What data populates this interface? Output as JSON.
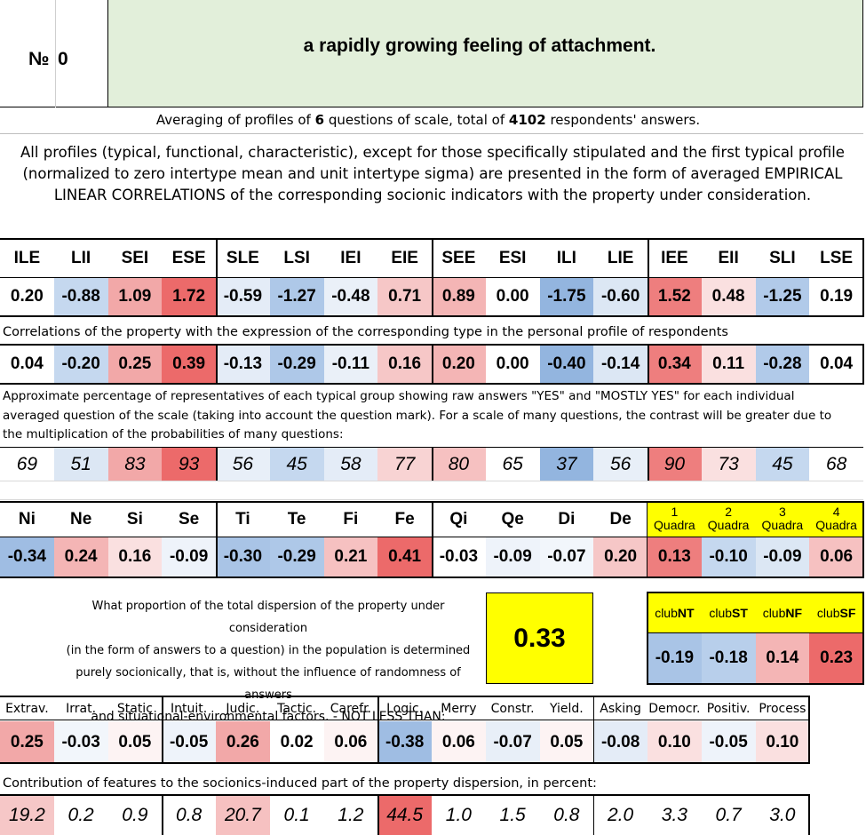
{
  "header": {
    "number_label": "№",
    "number_value": "0",
    "title": "a rapidly growing feeling of attachment."
  },
  "summary": {
    "prefix": "Averaging of profiles of ",
    "questions": "6",
    "middle": " questions of scale, total of ",
    "respondents": "4102",
    "suffix": " respondents' answers."
  },
  "description": "All profiles (typical, functional, characteristic), except for those specifically stipulated and the first typical profile (normalized to zero intertype mean and unit intertype sigma) are presented in the form of averaged EMPIRICAL LINEAR CORRELATIONS of the corresponding socionic indicators with the property under consideration.",
  "types": {
    "headers": [
      "ILE",
      "LII",
      "SEI",
      "ESE",
      "SLE",
      "LSI",
      "IEI",
      "EIE",
      "SEE",
      "ESI",
      "ILI",
      "LIE",
      "IEE",
      "EII",
      "SLI",
      "LSE"
    ],
    "profile": [
      "0.20",
      "-0.88",
      "1.09",
      "1.72",
      "-0.59",
      "-1.27",
      "-0.48",
      "0.71",
      "0.89",
      "0.00",
      "-1.75",
      "-0.60",
      "1.52",
      "0.48",
      "-1.25",
      "0.19"
    ],
    "profile_colors": [
      "#ffffff",
      "#c5d8ef",
      "#f2a8a8",
      "#ec6a6a",
      "#e4ecf7",
      "#aec8e8",
      "#eaf0f8",
      "#f6c7c7",
      "#f4b5b5",
      "#ffffff",
      "#93b5df",
      "#dce7f4",
      "#ee7e7e",
      "#fae0e0",
      "#b1cae9",
      "#ffffff"
    ],
    "correlation_note": "Correlations of the property with the expression of the corresponding type in the personal profile of respondents",
    "correlations": [
      "0.04",
      "-0.20",
      "0.25",
      "0.39",
      "-0.13",
      "-0.29",
      "-0.11",
      "0.16",
      "0.20",
      "0.00",
      "-0.40",
      "-0.14",
      "0.34",
      "0.11",
      "-0.28",
      "0.04"
    ],
    "correlation_colors": [
      "#ffffff",
      "#c5d8ef",
      "#f2a8a8",
      "#ec6a6a",
      "#e4ecf7",
      "#aec8e8",
      "#eaf0f8",
      "#f6c7c7",
      "#f4b5b5",
      "#ffffff",
      "#93b5df",
      "#dce7f4",
      "#ee7e7e",
      "#fae0e0",
      "#b1cae9",
      "#ffffff"
    ],
    "percentage_note": "Approximate percentage of representatives of each typical group showing raw answers \"YES\" and \"MOSTLY YES\" for each individual averaged question of the scale (taking into account the question mark). For a scale of many questions, the contrast will be greater due to the multiplication of the probabilities of many questions:",
    "percentages": [
      "69",
      "51",
      "83",
      "93",
      "56",
      "45",
      "58",
      "77",
      "80",
      "65",
      "37",
      "56",
      "90",
      "73",
      "45",
      "68"
    ],
    "percentage_colors": [
      "#ffffff",
      "#dce7f4",
      "#f2a8a8",
      "#ec6a6a",
      "#e8eff8",
      "#c5d8ef",
      "#e4ecf7",
      "#f8d3d3",
      "#f6c1c1",
      "#ffffff",
      "#93b5df",
      "#e8eff8",
      "#ee7e7e",
      "#fae0e0",
      "#c5d8ef",
      "#ffffff"
    ]
  },
  "functions": {
    "headers": [
      "Ni",
      "Ne",
      "Si",
      "Se",
      "Ti",
      "Te",
      "Fi",
      "Fe",
      "Qi",
      "Qe",
      "Di",
      "De"
    ],
    "values": [
      "-0.34",
      "0.24",
      "0.16",
      "-0.09",
      "-0.30",
      "-0.29",
      "0.21",
      "0.41",
      "-0.03",
      "-0.09",
      "-0.07",
      "0.20"
    ],
    "colors": [
      "#9fbde3",
      "#f4b5b5",
      "#fae0e0",
      "#eef3fa",
      "#a9c4e6",
      "#aec8e8",
      "#f6c1c1",
      "#ec6a6a",
      "#ffffff",
      "#eef3fa",
      "#f2f6fb",
      "#f6c7c7"
    ],
    "quadras": [
      {
        "num": "1",
        "label": "Quadra",
        "value": "0.13",
        "color": "#ee7e7e"
      },
      {
        "num": "2",
        "label": "Quadra",
        "value": "-0.10",
        "color": "#c5d8ef"
      },
      {
        "num": "3",
        "label": "Quadra",
        "value": "-0.09",
        "color": "#dce7f4"
      },
      {
        "num": "4",
        "label": "Quadra",
        "value": "0.06",
        "color": "#f6c1c1"
      }
    ],
    "quadra_header_color": "#ffff00"
  },
  "dispersion": {
    "lines": [
      "What proportion of the total dispersion of the property under consideration",
      "(in the form of answers to a question) in the population is determined",
      "purely socionically, that is, without the influence of randomness of answers",
      "and situational-environmental factors. - NOT LESS THAN:"
    ],
    "value": "0.33",
    "value_color": "#ffff00"
  },
  "clubs": {
    "items": [
      {
        "prefix": "club",
        "suffix": "NT",
        "value": "-0.19",
        "color": "#a9c4e6"
      },
      {
        "prefix": "club",
        "suffix": "ST",
        "value": "-0.18",
        "color": "#b8cfeb"
      },
      {
        "prefix": "club",
        "suffix": "NF",
        "value": "0.14",
        "color": "#f4b5b5"
      },
      {
        "prefix": "club",
        "suffix": "SF",
        "value": "0.23",
        "color": "#ec6a6a"
      }
    ],
    "header_color": "#ffff00"
  },
  "traits": {
    "headers": [
      "Extrav.",
      "Irrat.",
      "Static",
      "Intuit.",
      "Judic.",
      "Tactic.",
      "Carefr.",
      "Logic.",
      "Merry",
      "Constr.",
      "Yield.",
      "Asking",
      "Democr.",
      "Positiv.",
      "Process"
    ],
    "values": [
      "0.25",
      "-0.03",
      "0.05",
      "-0.05",
      "0.26",
      "0.02",
      "0.06",
      "-0.38",
      "0.06",
      "-0.07",
      "0.05",
      "-0.08",
      "0.10",
      "-0.05",
      "0.10"
    ],
    "colors": [
      "#f2a8a8",
      "#f2f6fb",
      "#fdf3f3",
      "#eef3fa",
      "#f2a8a8",
      "#ffffff",
      "#fdf3f3",
      "#9fbde3",
      "#fdf3f3",
      "#e8eff8",
      "#fdf3f3",
      "#e4ecf7",
      "#fae0e0",
      "#eef3fa",
      "#fae0e0"
    ],
    "contribution_note": "Contribution of features to the socionics-induced part of the property dispersion, in percent:",
    "contributions": [
      "19.2",
      "0.2",
      "0.9",
      "0.8",
      "20.7",
      "0.1",
      "1.2",
      "44.5",
      "1.0",
      "1.5",
      "0.8",
      "2.0",
      "3.3",
      "0.7",
      "3.0"
    ],
    "contribution_colors": [
      "#f6c7c7",
      "#ffffff",
      "#ffffff",
      "#ffffff",
      "#f6c1c1",
      "#ffffff",
      "#ffffff",
      "#ec6a6a",
      "#ffffff",
      "#ffffff",
      "#ffffff",
      "#ffffff",
      "#ffffff",
      "#ffffff",
      "#ffffff"
    ]
  }
}
